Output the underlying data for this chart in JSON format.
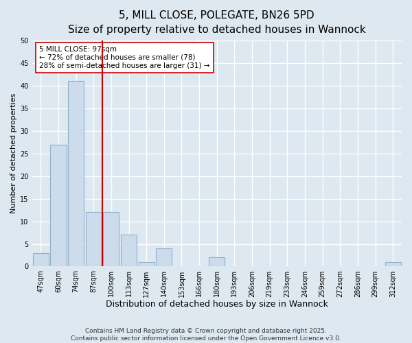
{
  "title": "5, MILL CLOSE, POLEGATE, BN26 5PD",
  "subtitle": "Size of property relative to detached houses in Wannock",
  "xlabel": "Distribution of detached houses by size in Wannock",
  "ylabel": "Number of detached properties",
  "categories": [
    "47sqm",
    "60sqm",
    "74sqm",
    "87sqm",
    "100sqm",
    "113sqm",
    "127sqm",
    "140sqm",
    "153sqm",
    "166sqm",
    "180sqm",
    "193sqm",
    "206sqm",
    "219sqm",
    "233sqm",
    "246sqm",
    "259sqm",
    "272sqm",
    "286sqm",
    "299sqm",
    "312sqm"
  ],
  "values": [
    3,
    27,
    41,
    12,
    12,
    7,
    1,
    4,
    0,
    0,
    2,
    0,
    0,
    0,
    0,
    0,
    0,
    0,
    0,
    0,
    1
  ],
  "bar_color": "#ccdcec",
  "bar_edge_color": "#90b0cc",
  "vline_color": "#cc0000",
  "annotation_text": "5 MILL CLOSE: 97sqm\n← 72% of detached houses are smaller (78)\n28% of semi-detached houses are larger (31) →",
  "annotation_box_color": "#ffffff",
  "annotation_box_edge": "#cc0000",
  "ylim": [
    0,
    50
  ],
  "yticks": [
    0,
    5,
    10,
    15,
    20,
    25,
    30,
    35,
    40,
    45,
    50
  ],
  "background_color": "#dde8f0",
  "grid_color": "#ffffff",
  "footer": "Contains HM Land Registry data © Crown copyright and database right 2025.\nContains public sector information licensed under the Open Government Licence v3.0.",
  "title_fontsize": 11,
  "subtitle_fontsize": 10,
  "xlabel_fontsize": 9,
  "ylabel_fontsize": 8,
  "tick_fontsize": 7,
  "annotation_fontsize": 7.5,
  "footer_fontsize": 6.5
}
